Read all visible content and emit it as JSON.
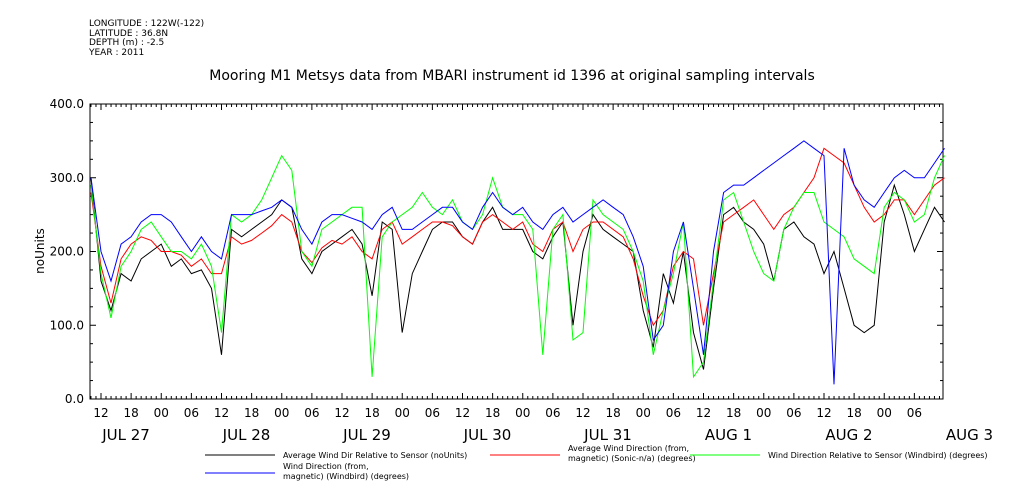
{
  "header": {
    "meta_lines": [
      "LONGITUDE : 122W(-122)",
      "LATITUDE : 36.8N",
      "DEPTH (m) : -2.5",
      "YEAR : 2011"
    ]
  },
  "chart_data": {
    "type": "line",
    "title": "Mooring M1 Metsys data from MBARI instrument id 1396 at original sampling intervals",
    "ylabel": "noUnits",
    "xlabel": "",
    "ylim": [
      0,
      400
    ],
    "y_ticks": [
      0,
      100,
      200,
      300,
      400
    ],
    "x_tick_labels": [
      "12",
      "18",
      "00",
      "06",
      "12",
      "18",
      "00",
      "06",
      "12",
      "18",
      "00",
      "06",
      "12",
      "18",
      "00",
      "06",
      "12",
      "18",
      "00",
      "06",
      "12",
      "18",
      "00",
      "06",
      "12",
      "18",
      "00",
      "06"
    ],
    "date_labels": [
      "JUL 27",
      "JUL 28",
      "JUL 29",
      "JUL 30",
      "JUL 31",
      "AUG  1",
      "AUG  2",
      "AUG  3"
    ],
    "grid": false,
    "legend": [
      {
        "name": "Average Wind Dir Relative to Sensor (noUnits)",
        "color": "#000000"
      },
      {
        "name": "Average Wind Direction (from,\nmagnetic) (Sonic-n/a) (degrees)",
        "color": "#ff0000"
      },
      {
        "name": "Wind Direction Relative to Sensor (Windbird) (degrees)",
        "color": "#00ff00"
      },
      {
        "name": "Wind Direction (from,\nmagnetic) (Windbird) (degrees)",
        "color": "#0000ff"
      }
    ],
    "x_unit": "hours since 2011-07-27 12:00",
    "series": [
      {
        "name": "Average Wind Dir Relative to Sensor (noUnits)",
        "color": "#000000",
        "x": [
          -2,
          0,
          2,
          4,
          6,
          8,
          10,
          12,
          14,
          16,
          18,
          20,
          22,
          24,
          26,
          28,
          30,
          32,
          34,
          36,
          38,
          40,
          42,
          44,
          46,
          48,
          50,
          52,
          54,
          56,
          58,
          60,
          62,
          64,
          66,
          68,
          70,
          72,
          74,
          76,
          78,
          80,
          82,
          84,
          86,
          88,
          90,
          92,
          94,
          96,
          98,
          100,
          102,
          104,
          106,
          108,
          110,
          112,
          114,
          116,
          118,
          120,
          122,
          124,
          126,
          128,
          130,
          132,
          134,
          136,
          138,
          140,
          142,
          144,
          146,
          148,
          150,
          152,
          154,
          156,
          158,
          160,
          162,
          164,
          166,
          168
        ],
        "values": [
          300,
          160,
          120,
          170,
          160,
          190,
          200,
          210,
          180,
          190,
          170,
          175,
          150,
          60,
          230,
          220,
          230,
          240,
          250,
          270,
          260,
          190,
          170,
          200,
          210,
          220,
          230,
          210,
          140,
          240,
          230,
          90,
          170,
          200,
          230,
          240,
          240,
          220,
          210,
          240,
          260,
          230,
          230,
          230,
          200,
          190,
          220,
          240,
          100,
          200,
          250,
          230,
          220,
          210,
          200,
          120,
          70,
          170,
          130,
          200,
          90,
          40,
          150,
          250,
          260,
          240,
          230,
          210,
          160,
          230,
          240,
          220,
          210,
          170,
          200,
          150,
          100,
          90,
          100,
          240,
          290,
          250,
          200,
          230,
          260,
          240
        ]
      },
      {
        "name": "Average Wind Direction (from,\nmagnetic) (Sonic-n/a) (degrees)",
        "color": "#ff0000",
        "x": [
          -2,
          0,
          2,
          4,
          6,
          8,
          10,
          12,
          14,
          16,
          18,
          20,
          22,
          24,
          26,
          28,
          30,
          32,
          34,
          36,
          38,
          40,
          42,
          44,
          46,
          48,
          50,
          52,
          54,
          56,
          58,
          60,
          62,
          64,
          66,
          68,
          70,
          72,
          74,
          76,
          78,
          80,
          82,
          84,
          86,
          88,
          90,
          92,
          94,
          96,
          98,
          100,
          102,
          104,
          106,
          108,
          110,
          112,
          114,
          116,
          118,
          120,
          122,
          124,
          126,
          128,
          130,
          132,
          134,
          136,
          138,
          140,
          142,
          144,
          146,
          148,
          150,
          152,
          154,
          156,
          158,
          160,
          162,
          164,
          166,
          168
        ],
        "values": [
          280,
          180,
          130,
          190,
          210,
          220,
          215,
          200,
          200,
          195,
          180,
          190,
          170,
          170,
          220,
          210,
          215,
          225,
          235,
          250,
          240,
          200,
          185,
          205,
          215,
          210,
          220,
          200,
          190,
          230,
          240,
          210,
          220,
          230,
          240,
          240,
          235,
          220,
          210,
          240,
          250,
          240,
          230,
          240,
          210,
          200,
          230,
          240,
          200,
          230,
          240,
          240,
          230,
          220,
          190,
          140,
          100,
          120,
          180,
          200,
          190,
          100,
          170,
          240,
          250,
          260,
          270,
          250,
          230,
          250,
          260,
          280,
          300,
          340,
          330,
          320,
          290,
          260,
          240,
          250,
          270,
          270,
          250,
          270,
          290,
          300
        ]
      },
      {
        "name": "Wind Direction Relative to Sensor (Windbird) (degrees)",
        "color": "#00ff00",
        "x": [
          -2,
          0,
          2,
          4,
          6,
          8,
          10,
          12,
          14,
          16,
          18,
          20,
          22,
          24,
          26,
          28,
          30,
          32,
          34,
          36,
          38,
          40,
          42,
          44,
          46,
          48,
          50,
          52,
          54,
          56,
          58,
          60,
          62,
          64,
          66,
          68,
          70,
          72,
          74,
          76,
          78,
          80,
          82,
          84,
          86,
          88,
          90,
          92,
          94,
          96,
          98,
          100,
          102,
          104,
          106,
          108,
          110,
          112,
          114,
          116,
          118,
          120,
          122,
          124,
          126,
          128,
          130,
          132,
          134,
          136,
          138,
          140,
          142,
          144,
          146,
          148,
          150,
          152,
          154,
          156,
          158,
          160,
          162,
          164,
          166,
          168
        ],
        "values": [
          290,
          170,
          110,
          180,
          200,
          230,
          240,
          220,
          200,
          200,
          190,
          210,
          180,
          90,
          250,
          240,
          250,
          270,
          300,
          330,
          310,
          200,
          180,
          230,
          240,
          250,
          260,
          260,
          30,
          220,
          240,
          250,
          260,
          280,
          260,
          250,
          270,
          240,
          230,
          250,
          300,
          260,
          250,
          250,
          230,
          60,
          230,
          250,
          80,
          90,
          270,
          250,
          240,
          230,
          200,
          160,
          60,
          120,
          170,
          240,
          30,
          50,
          160,
          270,
          280,
          240,
          200,
          170,
          160,
          230,
          260,
          280,
          280,
          240,
          230,
          220,
          190,
          180,
          170,
          260,
          280,
          270,
          240,
          250,
          300,
          330
        ]
      },
      {
        "name": "Wind Direction (from,\nmagnetic) (Windbird) (degrees)",
        "color": "#0000ff",
        "x": [
          -2,
          0,
          2,
          4,
          6,
          8,
          10,
          12,
          14,
          16,
          18,
          20,
          22,
          24,
          26,
          28,
          30,
          32,
          34,
          36,
          38,
          40,
          42,
          44,
          46,
          48,
          50,
          52,
          54,
          56,
          58,
          60,
          62,
          64,
          66,
          68,
          70,
          72,
          74,
          76,
          78,
          80,
          82,
          84,
          86,
          88,
          90,
          92,
          94,
          96,
          98,
          100,
          102,
          104,
          106,
          108,
          110,
          112,
          114,
          116,
          118,
          120,
          122,
          124,
          126,
          128,
          130,
          132,
          134,
          136,
          138,
          140,
          142,
          144,
          146,
          148,
          150,
          152,
          154,
          156,
          158,
          160,
          162,
          164,
          166,
          168
        ],
        "values": [
          300,
          200,
          160,
          210,
          220,
          240,
          250,
          250,
          240,
          220,
          200,
          220,
          200,
          190,
          250,
          250,
          250,
          255,
          260,
          270,
          260,
          230,
          210,
          240,
          250,
          250,
          245,
          240,
          230,
          250,
          260,
          230,
          230,
          240,
          250,
          260,
          260,
          240,
          230,
          260,
          280,
          260,
          250,
          260,
          240,
          230,
          250,
          260,
          240,
          250,
          260,
          270,
          260,
          250,
          220,
          180,
          80,
          100,
          200,
          240,
          150,
          60,
          200,
          280,
          290,
          290,
          300,
          310,
          320,
          330,
          340,
          350,
          340,
          330,
          20,
          340,
          290,
          270,
          260,
          280,
          300,
          310,
          300,
          300,
          320,
          340
        ]
      }
    ]
  }
}
